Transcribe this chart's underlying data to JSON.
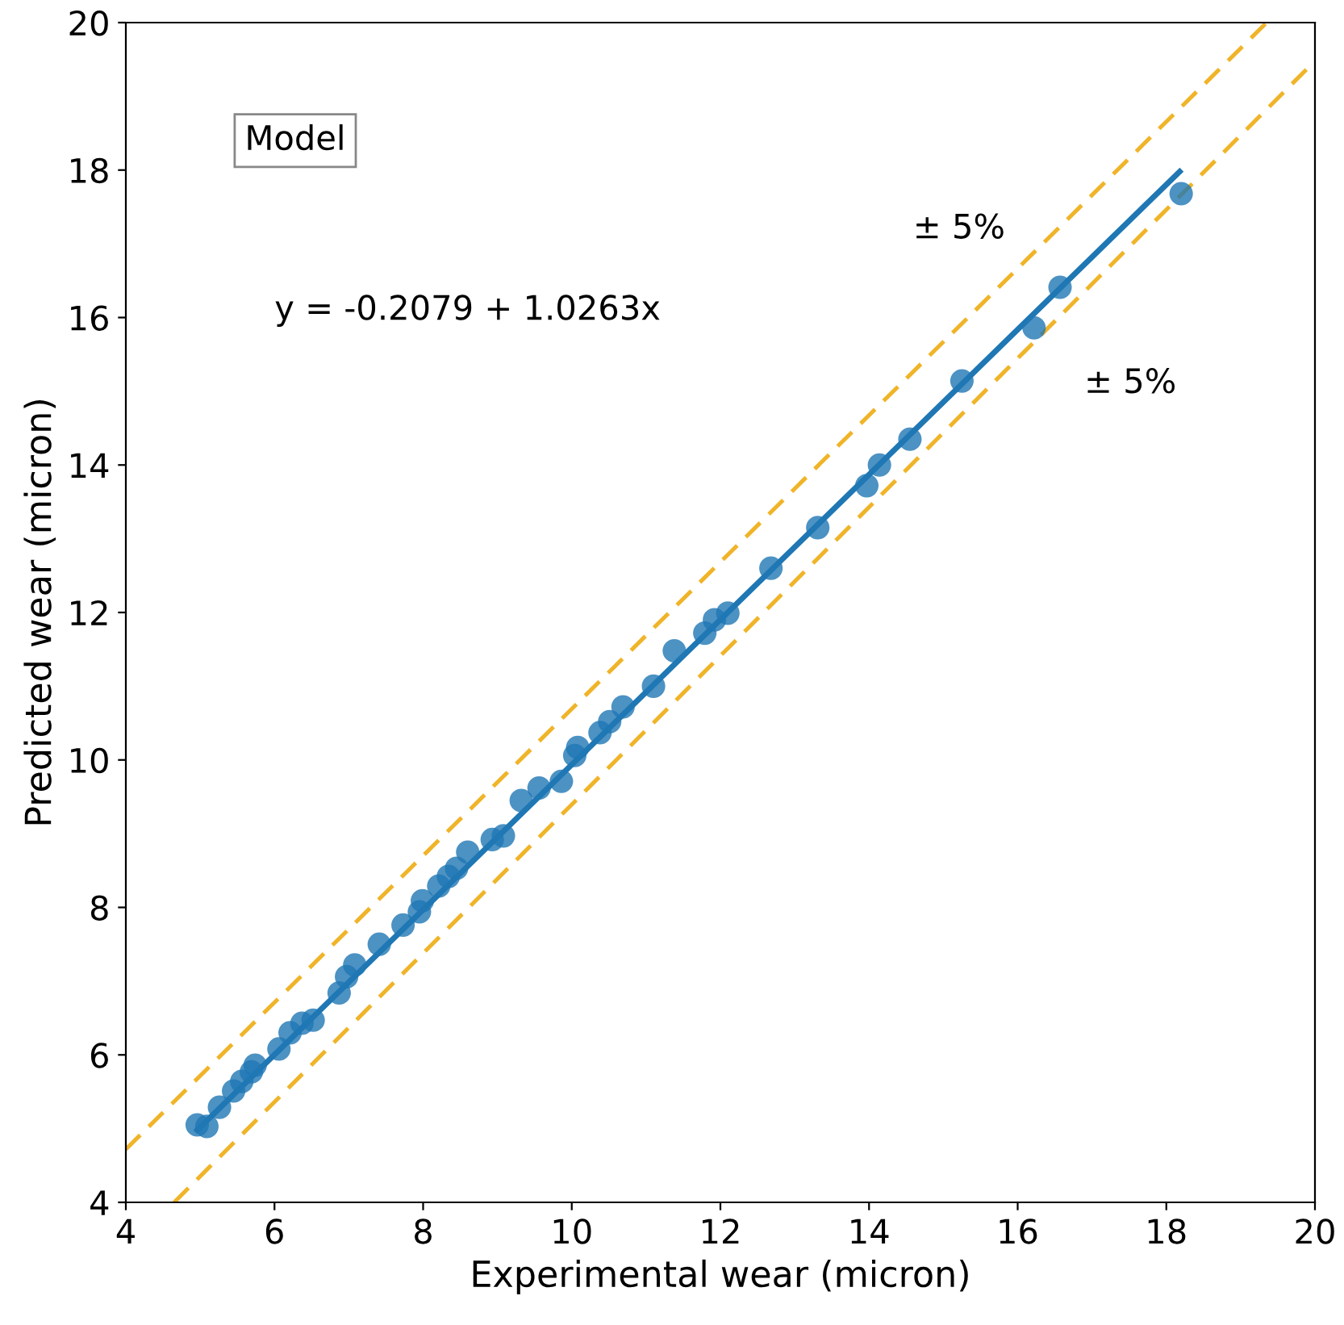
{
  "chart_data": {
    "type": "scatter",
    "xlabel": "Experimental wear (micron)",
    "ylabel": "Predicted wear (micron)",
    "xlim": [
      4,
      20
    ],
    "ylim": [
      4,
      20
    ],
    "xticks": [
      4,
      6,
      8,
      10,
      12,
      14,
      16,
      18,
      20
    ],
    "yticks": [
      4,
      6,
      8,
      10,
      12,
      14,
      16,
      18,
      20
    ],
    "grid": false,
    "series": [
      {
        "marker": "circle",
        "color": "#1f77b4",
        "x": [
          4.96,
          5.09,
          5.26,
          5.45,
          5.56,
          5.69,
          5.74,
          6.06,
          6.21,
          6.37,
          6.52,
          6.87,
          6.97,
          7.08,
          7.41,
          7.73,
          7.95,
          7.99,
          8.21,
          8.34,
          8.45,
          8.6,
          8.93,
          9.08,
          9.32,
          9.56,
          9.86,
          10.04,
          10.08,
          10.38,
          10.51,
          10.69,
          11.1,
          11.38,
          11.79,
          11.92,
          12.1,
          12.68,
          13.31,
          13.97,
          14.14,
          14.55,
          15.25,
          16.22,
          16.57,
          18.2
        ],
        "values": [
          5.05,
          5.03,
          5.29,
          5.51,
          5.64,
          5.77,
          5.86,
          6.08,
          6.3,
          6.43,
          6.47,
          6.84,
          7.06,
          7.22,
          7.5,
          7.76,
          7.94,
          8.09,
          8.29,
          8.42,
          8.53,
          8.75,
          8.92,
          8.97,
          9.45,
          9.62,
          9.71,
          10.06,
          10.17,
          10.37,
          10.52,
          10.72,
          11.0,
          11.48,
          11.72,
          11.9,
          11.99,
          12.6,
          13.15,
          13.72,
          14.0,
          14.35,
          15.14,
          15.86,
          16.41,
          17.68
        ]
      },
      {
        "type": "line",
        "marker": "none",
        "color": "#1f77b4",
        "line_style": "solid",
        "x": [
          4.96,
          18.18
        ],
        "values": [
          4.98,
          17.98
        ]
      },
      {
        "type": "line",
        "marker": "none",
        "color": "#f0b429",
        "line_style": "dashed",
        "x": [
          4,
          19.35
        ],
        "values": [
          4.72,
          20
        ]
      },
      {
        "type": "line",
        "marker": "none",
        "color": "#f0b429",
        "line_style": "dashed",
        "x": [
          4.65,
          20
        ],
        "values": [
          4,
          19.48
        ]
      }
    ],
    "annotations": [
      "Model",
      "y = -0.2079 + 1.0263x",
      "± 5%",
      "± 5%"
    ]
  }
}
